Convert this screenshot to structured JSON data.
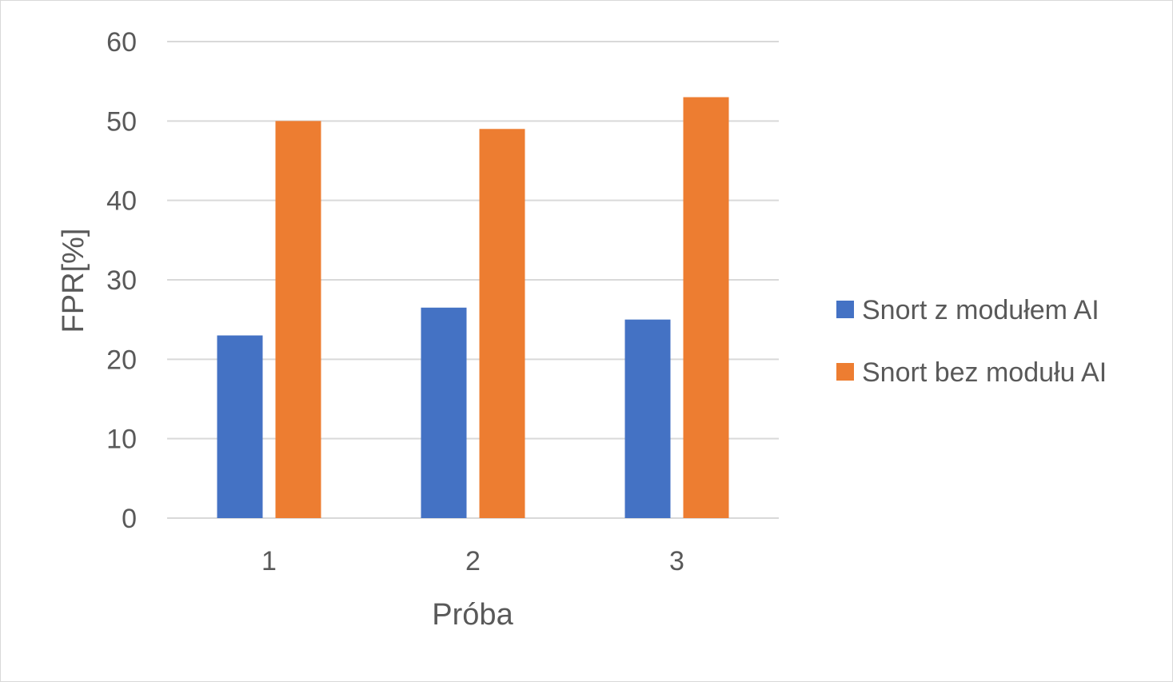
{
  "chart_data": {
    "type": "bar",
    "title": "",
    "xlabel": "Próba",
    "ylabel": "FPR[%]",
    "categories": [
      "1",
      "2",
      "3"
    ],
    "ylim": [
      0,
      60
    ],
    "yticks": [
      0,
      10,
      20,
      30,
      40,
      50,
      60
    ],
    "grid": true,
    "legend_position": "right",
    "series": [
      {
        "name": "Snort z modułem AI",
        "values": [
          23,
          26.5,
          25
        ],
        "color": "#4472c4"
      },
      {
        "name": "Snort bez modułu AI",
        "values": [
          50,
          49,
          53
        ],
        "color": "#ed7d31"
      }
    ]
  }
}
